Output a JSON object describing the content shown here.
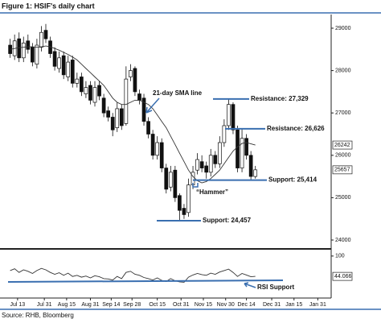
{
  "chart_data": {
    "type": "candlestick",
    "title": "Figure 1: HSIF's daily chart",
    "source": "Source: RHB, Bloomberg",
    "x": [
      -5,
      -2,
      1,
      4,
      7,
      10,
      13,
      16,
      19,
      22,
      25,
      28,
      31,
      34,
      37,
      40,
      43,
      46,
      49,
      52,
      55,
      58,
      61,
      64,
      67,
      70,
      73,
      76,
      79,
      82,
      85,
      88,
      91,
      94,
      97,
      100,
      103,
      106,
      109,
      112,
      115,
      118,
      121,
      124,
      127,
      130,
      133,
      136,
      139,
      142,
      145,
      148,
      151,
      154,
      157,
      160
    ],
    "open": [
      28600,
      28350,
      28750,
      28300,
      28700,
      28550,
      28150,
      28550,
      28950,
      28700,
      28450,
      28050,
      28350,
      27850,
      28250,
      27700,
      27850,
      27450,
      27650,
      27250,
      27650,
      27350,
      27050,
      26900,
      26650,
      27100,
      26750,
      27850,
      28050,
      27450,
      27350,
      26800,
      26500,
      26000,
      26300,
      25700,
      25250,
      25650,
      25050,
      24750,
      24650,
      25300,
      25650,
      25850,
      25750,
      25600,
      26000,
      25800,
      26300,
      26700,
      27200,
      26600,
      25700,
      26400,
      26000,
      25500
    ],
    "high": [
      28750,
      28850,
      28900,
      28800,
      28850,
      28650,
      28750,
      29050,
      29100,
      28800,
      28550,
      28450,
      28450,
      28350,
      28350,
      27950,
      27950,
      27750,
      27750,
      27750,
      27750,
      27450,
      27150,
      27000,
      27250,
      27200,
      28100,
      28150,
      28100,
      27550,
      27450,
      26900,
      26600,
      26450,
      26400,
      25800,
      25750,
      25750,
      25100,
      24850,
      25450,
      25750,
      26050,
      26000,
      25850,
      26150,
      26100,
      26450,
      26850,
      27329,
      27250,
      26700,
      26626,
      26500,
      26100,
      25750
    ],
    "low": [
      28300,
      28250,
      28200,
      28200,
      28400,
      28100,
      28050,
      28450,
      28650,
      28300,
      28000,
      27950,
      27800,
      27750,
      27600,
      27600,
      27400,
      27350,
      27200,
      27150,
      27300,
      26900,
      26800,
      26450,
      26550,
      26600,
      26700,
      27750,
      27400,
      27200,
      26700,
      26400,
      25900,
      25900,
      25600,
      25100,
      25150,
      24900,
      24457,
      24500,
      24550,
      25200,
      25550,
      25600,
      25450,
      25500,
      25700,
      25700,
      26200,
      26600,
      26500,
      25600,
      25600,
      25900,
      25414,
      25450
    ],
    "close": [
      28400,
      28700,
      28300,
      28650,
      28500,
      28200,
      28600,
      28900,
      28750,
      28400,
      28100,
      28300,
      27900,
      28200,
      27700,
      27800,
      27500,
      27600,
      27300,
      27600,
      27400,
      27000,
      26900,
      26600,
      27100,
      26700,
      27800,
      28000,
      27500,
      27300,
      26800,
      26500,
      26000,
      26300,
      25700,
      25200,
      25600,
      25000,
      24700,
      24600,
      25300,
      25600,
      25900,
      25700,
      25600,
      26000,
      25800,
      26300,
      26700,
      27200,
      26600,
      25700,
      26400,
      26000,
      25500,
      25657
    ],
    "sma": {
      "color": "#333333",
      "values": [
        28500,
        28520,
        28540,
        28550,
        28560,
        28560,
        28550,
        28560,
        28580,
        28560,
        28520,
        28480,
        28430,
        28380,
        28320,
        28250,
        28150,
        28050,
        27950,
        27850,
        27750,
        27650,
        27500,
        27350,
        27250,
        27200,
        27200,
        27250,
        27300,
        27300,
        27250,
        27200,
        27100,
        26950,
        26800,
        26650,
        26450,
        26250,
        26050,
        25850,
        25650,
        25500,
        25400,
        25350,
        25380,
        25450,
        25550,
        25650,
        25800,
        25950,
        26100,
        26200,
        26280,
        26300,
        26270,
        26242
      ]
    },
    "last_price": 25657,
    "last_sma": 26242,
    "xlim": [
      -7.5,
      211
    ],
    "ylim": [
      23810,
      29285
    ],
    "yticks": [
      24000,
      25000,
      26000,
      27000,
      28000,
      29000
    ],
    "xticks": [
      {
        "value": 0,
        "label": "Jul 13"
      },
      {
        "value": 18,
        "label": "Jul 31"
      },
      {
        "value": 33,
        "label": "Aug 15"
      },
      {
        "value": 49,
        "label": "Aug 31"
      },
      {
        "value": 63,
        "label": "Sep 14"
      },
      {
        "value": 77,
        "label": "Sep 28"
      },
      {
        "value": 94,
        "label": "Oct 15"
      },
      {
        "value": 110,
        "label": "Oct 31"
      },
      {
        "value": 125,
        "label": "Nov 15"
      },
      {
        "value": 140,
        "label": "Nov 30"
      },
      {
        "value": 154,
        "label": "Dec 14"
      },
      {
        "value": 171,
        "label": "Dec 31"
      },
      {
        "value": 186,
        "label": "Jan 15"
      },
      {
        "value": 202,
        "label": "Jan 31"
      }
    ],
    "rsi": {
      "color": "#333333",
      "values": [
        60,
        65,
        55,
        62,
        58,
        52,
        60,
        66,
        62,
        55,
        50,
        54,
        47,
        53,
        44,
        47,
        42,
        45,
        40,
        46,
        43,
        38,
        37,
        34,
        44,
        38,
        55,
        58,
        50,
        47,
        41,
        38,
        34,
        40,
        33,
        30,
        38,
        32,
        29,
        28,
        42,
        48,
        52,
        49,
        47,
        53,
        50,
        56,
        60,
        64,
        55,
        44,
        52,
        48,
        43,
        44.066
      ],
      "ylim": [
        -11,
        113
      ],
      "yticks": [
        100
      ],
      "last": 44.066
    },
    "annotations": [
      {
        "text": "21-day SMA line"
      },
      {
        "text": "Resistance: 27,329",
        "level": 27329
      },
      {
        "text": "Resistance: 26,626",
        "level": 26626
      },
      {
        "text": "Support: 25,414",
        "level": 25414
      },
      {
        "text": "“Hammer”"
      },
      {
        "text": "Support: 24,457",
        "level": 24457
      },
      {
        "text": "RSI Support"
      }
    ]
  }
}
